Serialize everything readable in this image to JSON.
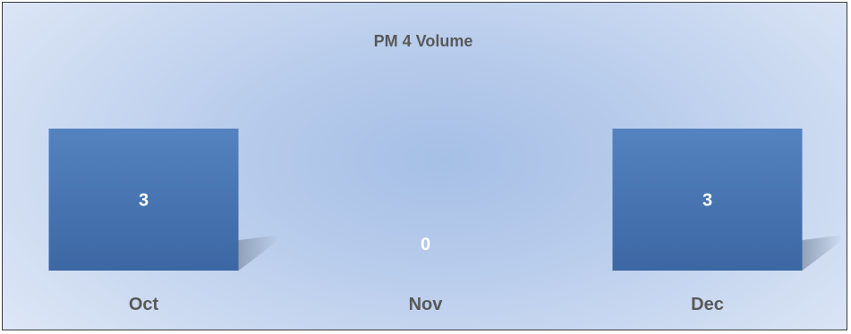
{
  "chart_data": {
    "type": "bar",
    "title": "PM 4 Volume",
    "categories": [
      "Oct",
      "Nov",
      "Dec"
    ],
    "values": [
      3,
      0,
      3
    ],
    "data_labels": [
      "3",
      "0",
      "3"
    ],
    "ylim": [
      0,
      3
    ],
    "grid": false,
    "legend": "none",
    "colors": {
      "bar_top": "#5483c0",
      "bar_bottom": "#3c67a3",
      "shadow": "#8b9bb2"
    }
  }
}
